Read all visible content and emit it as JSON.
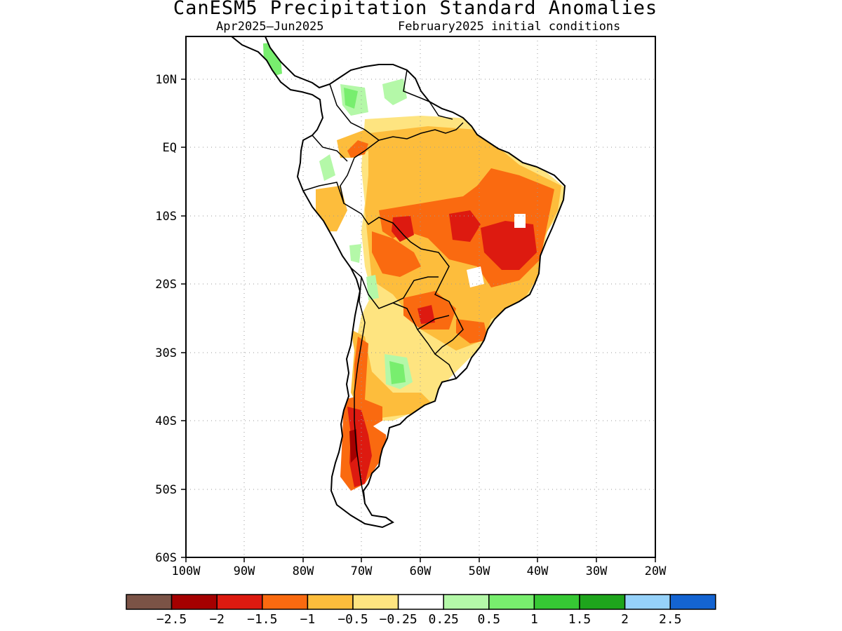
{
  "title": "CanESM5 Precipitation Standard Anomalies",
  "subtitle_left": "Apr2025–Jun2025",
  "subtitle_right": "February2025 initial conditions",
  "lat_labels": [
    "10N",
    "EQ",
    "10S",
    "20S",
    "30S",
    "40S",
    "50S",
    "60S"
  ],
  "lon_labels": [
    "100W",
    "90W",
    "80W",
    "70W",
    "60W",
    "50W",
    "40W",
    "30W",
    "20W"
  ],
  "colorbar": {
    "colors": [
      "#7b5346",
      "#a50000",
      "#dd1a10",
      "#fa6a10",
      "#fdbd3c",
      "#fee480",
      "#ffffff",
      "#b4f8a8",
      "#78ee6e",
      "#36c834",
      "#1ea51c",
      "#96d2fa",
      "#1464d2"
    ],
    "labels": [
      "−2.5",
      "−2",
      "−1.5",
      "−1",
      "−0.5",
      "−0.25",
      "0.25",
      "0.5",
      "1",
      "1.5",
      "2",
      "2.5"
    ]
  },
  "map": {
    "region": "South America",
    "lon_range": [
      -100,
      -20
    ],
    "lat_range": [
      -60,
      15
    ]
  }
}
